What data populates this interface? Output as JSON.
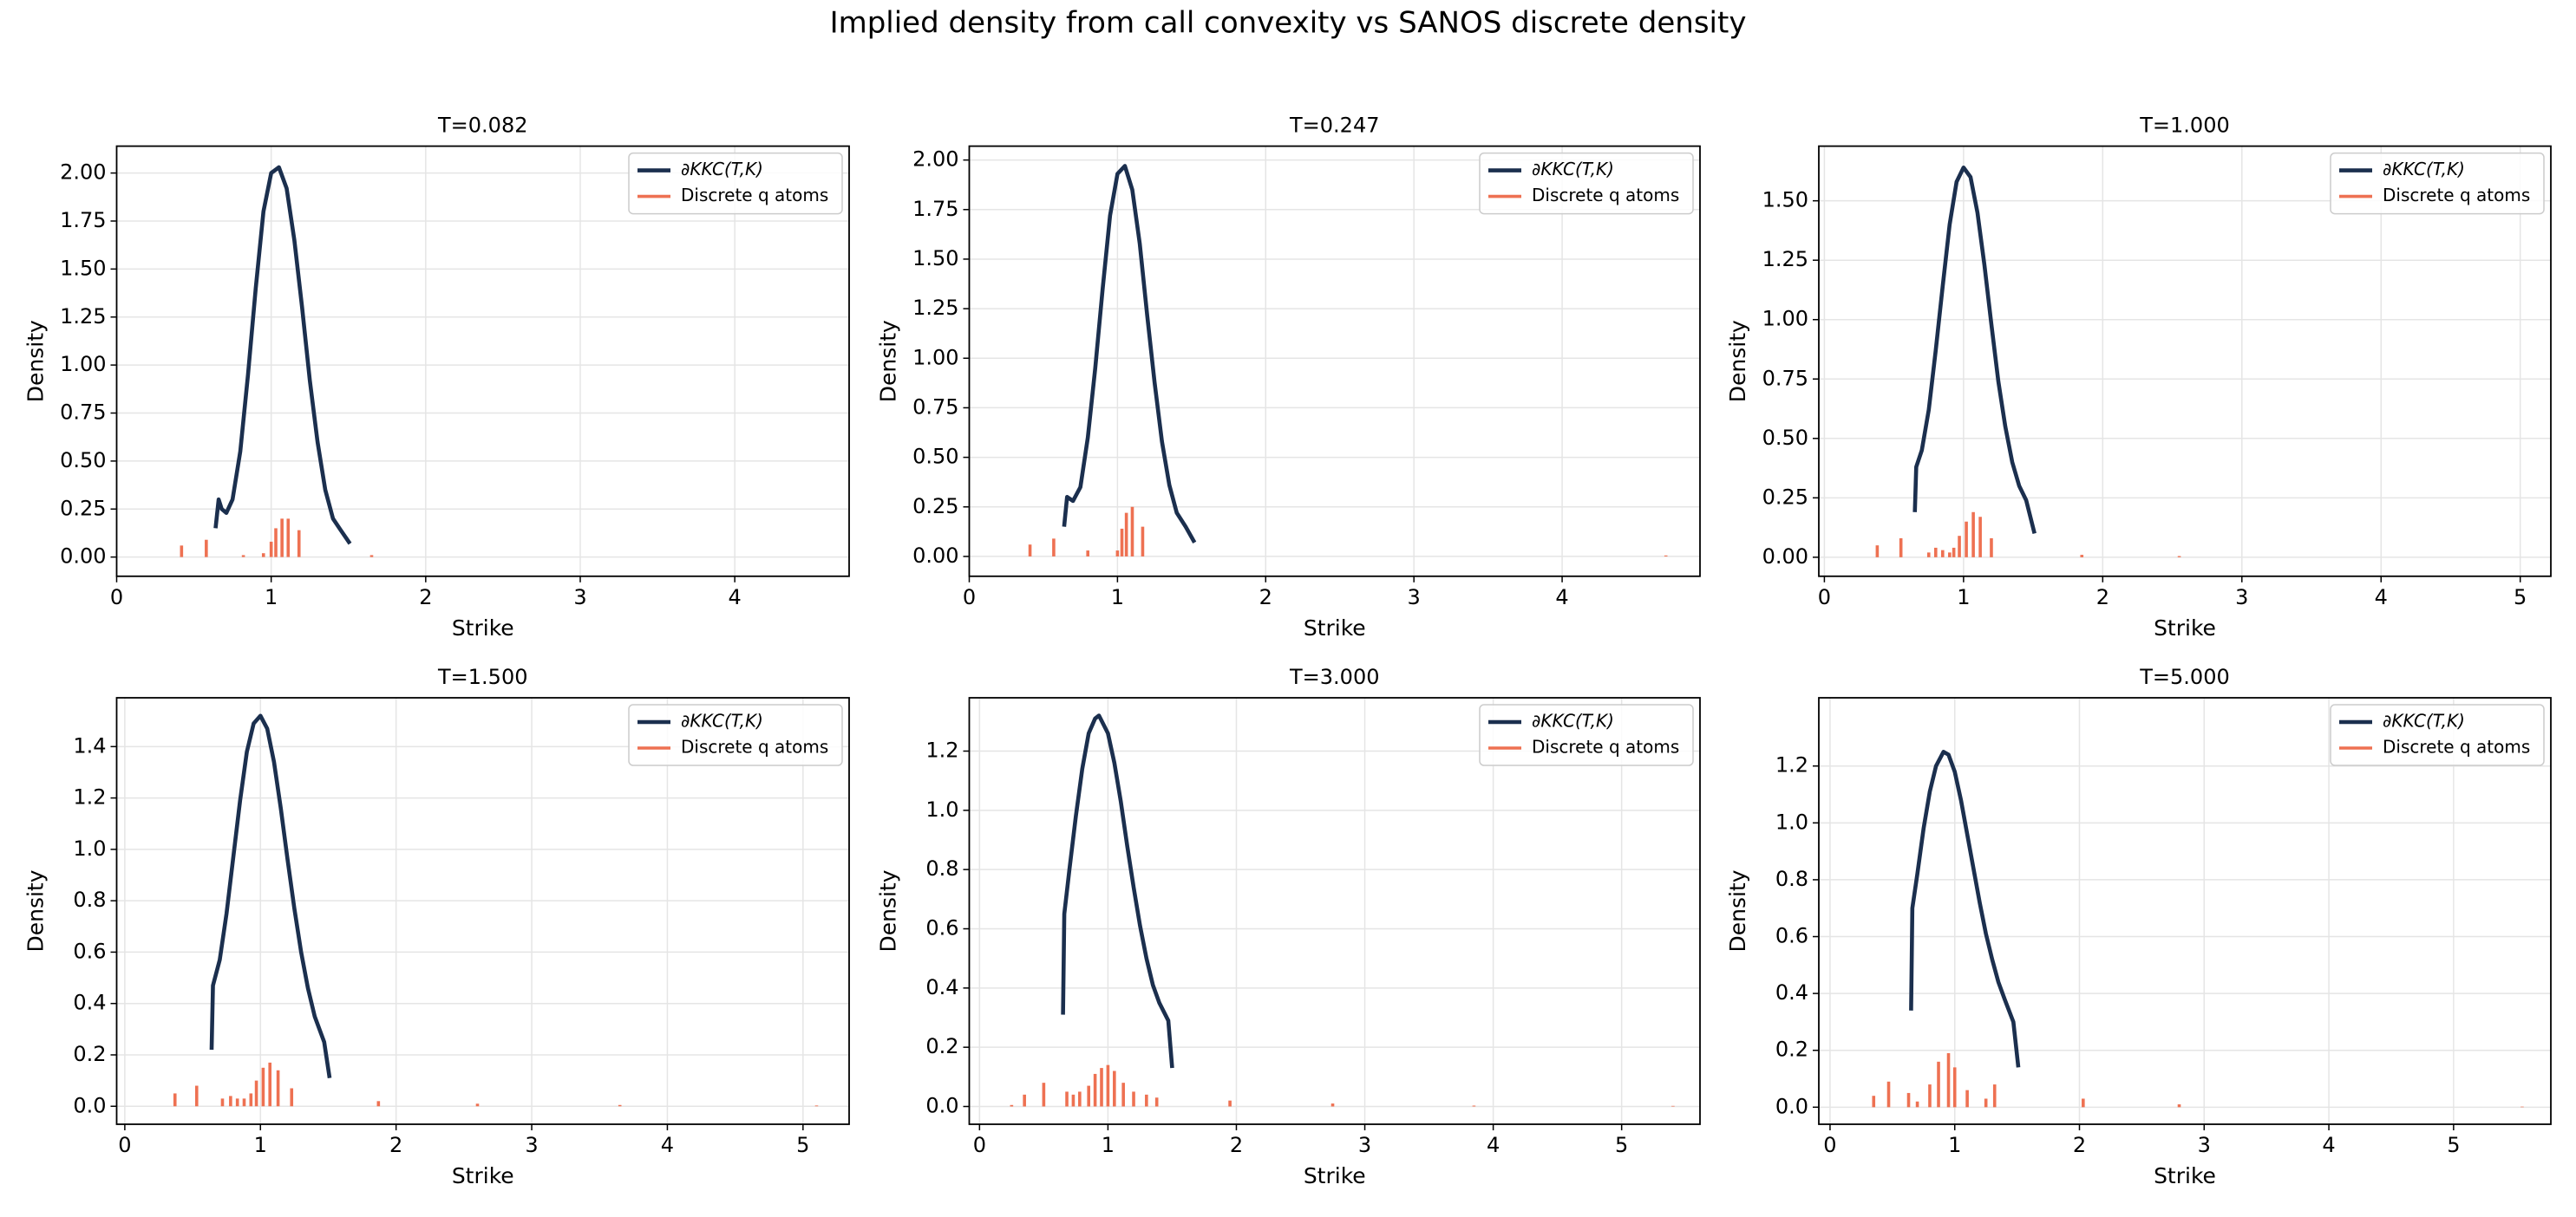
{
  "suptitle": "Implied density from call convexity vs SANOS discrete density",
  "chart_data": [
    {
      "type": "line",
      "title": "T=0.082",
      "xlabel": "Strike",
      "ylabel": "Density",
      "xlim": [
        0,
        4.74
      ],
      "ylim": [
        -0.1,
        2.14
      ],
      "xticks": [
        0,
        1,
        2,
        3,
        4
      ],
      "yticks": [
        {
          "value": 0,
          "label": "0.00"
        },
        {
          "value": 0.25,
          "label": "0.25"
        },
        {
          "value": 0.5,
          "label": "0.50"
        },
        {
          "value": 0.75,
          "label": "0.75"
        },
        {
          "value": 1,
          "label": "1.00"
        },
        {
          "value": 1.25,
          "label": "1.25"
        },
        {
          "value": 1.5,
          "label": "1.50"
        },
        {
          "value": 1.75,
          "label": "1.75"
        },
        {
          "value": 2,
          "label": "2.00"
        }
      ],
      "grid": true,
      "legend": "upper right",
      "series": [
        {
          "name": "∂KKC(T,K)",
          "color": "#1b2f4e",
          "x": [
            0.64,
            0.66,
            0.68,
            0.71,
            0.75,
            0.8,
            0.85,
            0.9,
            0.95,
            1.0,
            1.05,
            1.1,
            1.15,
            1.2,
            1.25,
            1.3,
            1.35,
            1.4,
            1.45,
            1.51
          ],
          "values": [
            0.15,
            0.3,
            0.25,
            0.23,
            0.3,
            0.55,
            0.95,
            1.4,
            1.8,
            2.0,
            2.03,
            1.92,
            1.65,
            1.3,
            0.92,
            0.6,
            0.35,
            0.2,
            0.14,
            0.07
          ]
        },
        {
          "name": "Discrete q atoms",
          "color": "#ee7152",
          "type": "stem",
          "x": [
            0.42,
            0.58,
            0.82,
            0.95,
            1.0,
            1.03,
            1.07,
            1.11,
            1.18,
            1.65
          ],
          "values": [
            0.06,
            0.09,
            0.01,
            0.02,
            0.08,
            0.15,
            0.2,
            0.2,
            0.14,
            0.01
          ]
        }
      ]
    },
    {
      "type": "line",
      "title": "T=0.247",
      "xlabel": "Strike",
      "ylabel": "Density",
      "xlim": [
        0,
        4.93
      ],
      "ylim": [
        -0.1,
        2.07
      ],
      "xticks": [
        0,
        1,
        2,
        3,
        4
      ],
      "yticks": [
        {
          "value": 0,
          "label": "0.00"
        },
        {
          "value": 0.25,
          "label": "0.25"
        },
        {
          "value": 0.5,
          "label": "0.50"
        },
        {
          "value": 0.75,
          "label": "0.75"
        },
        {
          "value": 1,
          "label": "1.00"
        },
        {
          "value": 1.25,
          "label": "1.25"
        },
        {
          "value": 1.5,
          "label": "1.50"
        },
        {
          "value": 1.75,
          "label": "1.75"
        },
        {
          "value": 2,
          "label": "2.00"
        }
      ],
      "grid": true,
      "legend": "upper right",
      "series": [
        {
          "name": "∂KKC(T,K)",
          "color": "#1b2f4e",
          "x": [
            0.64,
            0.66,
            0.7,
            0.75,
            0.8,
            0.85,
            0.9,
            0.95,
            1.0,
            1.05,
            1.1,
            1.15,
            1.2,
            1.25,
            1.3,
            1.35,
            1.4,
            1.46,
            1.52
          ],
          "values": [
            0.15,
            0.3,
            0.28,
            0.35,
            0.6,
            0.95,
            1.35,
            1.72,
            1.93,
            1.97,
            1.85,
            1.58,
            1.22,
            0.88,
            0.58,
            0.36,
            0.22,
            0.15,
            0.07
          ]
        },
        {
          "name": "Discrete q atoms",
          "color": "#ee7152",
          "type": "stem",
          "x": [
            0.41,
            0.57,
            0.8,
            1.0,
            1.03,
            1.06,
            1.1,
            1.17,
            4.7
          ],
          "values": [
            0.06,
            0.09,
            0.03,
            0.03,
            0.14,
            0.22,
            0.25,
            0.15,
            0.005
          ]
        }
      ]
    },
    {
      "type": "line",
      "title": "T=1.000",
      "xlabel": "Strike",
      "ylabel": "Density",
      "xlim": [
        -0.04,
        5.22
      ],
      "ylim": [
        -0.08,
        1.73
      ],
      "xticks": [
        0,
        1,
        2,
        3,
        4,
        5
      ],
      "yticks": [
        {
          "value": 0,
          "label": "0.00"
        },
        {
          "value": 0.25,
          "label": "0.25"
        },
        {
          "value": 0.5,
          "label": "0.50"
        },
        {
          "value": 0.75,
          "label": "0.75"
        },
        {
          "value": 1,
          "label": "1.00"
        },
        {
          "value": 1.25,
          "label": "1.25"
        },
        {
          "value": 1.5,
          "label": "1.50"
        }
      ],
      "grid": true,
      "legend": "upper right",
      "series": [
        {
          "name": "∂KKC(T,K)",
          "color": "#1b2f4e",
          "x": [
            0.65,
            0.66,
            0.7,
            0.75,
            0.8,
            0.85,
            0.9,
            0.95,
            1.0,
            1.05,
            1.1,
            1.15,
            1.2,
            1.25,
            1.3,
            1.35,
            1.4,
            1.45,
            1.51
          ],
          "values": [
            0.19,
            0.38,
            0.45,
            0.62,
            0.87,
            1.14,
            1.4,
            1.58,
            1.64,
            1.6,
            1.45,
            1.23,
            0.98,
            0.74,
            0.55,
            0.4,
            0.3,
            0.24,
            0.1
          ]
        },
        {
          "name": "Discrete q atoms",
          "color": "#ee7152",
          "type": "stem",
          "x": [
            0.38,
            0.55,
            0.75,
            0.8,
            0.85,
            0.9,
            0.93,
            0.97,
            1.02,
            1.07,
            1.12,
            1.2,
            1.85,
            2.55
          ],
          "values": [
            0.05,
            0.08,
            0.02,
            0.04,
            0.03,
            0.02,
            0.04,
            0.09,
            0.15,
            0.19,
            0.17,
            0.08,
            0.01,
            0.005
          ]
        }
      ]
    },
    {
      "type": "line",
      "title": "T=1.500",
      "xlabel": "Strike",
      "ylabel": "Density",
      "xlim": [
        -0.06,
        5.34
      ],
      "ylim": [
        -0.07,
        1.59
      ],
      "xticks": [
        0,
        1,
        2,
        3,
        4,
        5
      ],
      "yticks": [
        {
          "value": 0,
          "label": "0.0"
        },
        0.2,
        0.4,
        0.6,
        0.8,
        {
          "value": 1,
          "label": "1.0"
        },
        1.2,
        1.4
      ],
      "grid": true,
      "legend": "upper right",
      "series": [
        {
          "name": "∂KKC(T,K)",
          "color": "#1b2f4e",
          "x": [
            0.64,
            0.65,
            0.7,
            0.75,
            0.8,
            0.85,
            0.9,
            0.95,
            1.0,
            1.05,
            1.1,
            1.15,
            1.2,
            1.25,
            1.3,
            1.35,
            1.4,
            1.47,
            1.51
          ],
          "values": [
            0.22,
            0.47,
            0.57,
            0.75,
            0.97,
            1.19,
            1.38,
            1.49,
            1.52,
            1.47,
            1.34,
            1.16,
            0.96,
            0.77,
            0.6,
            0.46,
            0.35,
            0.25,
            0.11
          ]
        },
        {
          "name": "Discrete q atoms",
          "color": "#ee7152",
          "type": "stem",
          "x": [
            0.37,
            0.53,
            0.72,
            0.78,
            0.83,
            0.88,
            0.93,
            0.97,
            1.02,
            1.07,
            1.13,
            1.23,
            1.87,
            2.6,
            3.65,
            5.1
          ],
          "values": [
            0.05,
            0.08,
            0.03,
            0.04,
            0.03,
            0.03,
            0.05,
            0.1,
            0.15,
            0.17,
            0.14,
            0.07,
            0.02,
            0.01,
            0.005,
            0.003
          ]
        }
      ]
    },
    {
      "type": "line",
      "title": "T=3.000",
      "xlabel": "Strike",
      "ylabel": "Density",
      "xlim": [
        -0.08,
        5.61
      ],
      "ylim": [
        -0.06,
        1.38
      ],
      "xticks": [
        0,
        1,
        2,
        3,
        4,
        5
      ],
      "yticks": [
        {
          "value": 0,
          "label": "0.0"
        },
        0.2,
        0.4,
        0.6,
        0.8,
        {
          "value": 1,
          "label": "1.0"
        },
        1.2
      ],
      "grid": true,
      "legend": "upper right",
      "series": [
        {
          "name": "∂KKC(T,K)",
          "color": "#1b2f4e",
          "x": [
            0.65,
            0.66,
            0.7,
            0.75,
            0.8,
            0.85,
            0.9,
            0.93,
            1.0,
            1.05,
            1.1,
            1.15,
            1.2,
            1.25,
            1.3,
            1.35,
            1.4,
            1.47,
            1.5
          ],
          "values": [
            0.31,
            0.65,
            0.8,
            0.98,
            1.14,
            1.26,
            1.31,
            1.32,
            1.26,
            1.16,
            1.03,
            0.88,
            0.74,
            0.61,
            0.5,
            0.41,
            0.35,
            0.29,
            0.13
          ]
        },
        {
          "name": "Discrete q atoms",
          "color": "#ee7152",
          "type": "stem",
          "x": [
            0.25,
            0.35,
            0.5,
            0.68,
            0.73,
            0.78,
            0.85,
            0.9,
            0.95,
            1.0,
            1.05,
            1.12,
            1.2,
            1.3,
            1.38,
            1.95,
            2.75,
            3.85,
            5.4
          ],
          "values": [
            0.005,
            0.04,
            0.08,
            0.05,
            0.04,
            0.05,
            0.07,
            0.11,
            0.13,
            0.14,
            0.12,
            0.08,
            0.05,
            0.04,
            0.03,
            0.02,
            0.01,
            0.003,
            0.002
          ]
        }
      ]
    },
    {
      "type": "line",
      "title": "T=5.000",
      "xlabel": "Strike",
      "ylabel": "Density",
      "xlim": [
        -0.09,
        5.78
      ],
      "ylim": [
        -0.06,
        1.44
      ],
      "xticks": [
        0,
        1,
        2,
        3,
        4,
        5
      ],
      "yticks": [
        {
          "value": 0,
          "label": "0.0"
        },
        0.2,
        0.4,
        0.6,
        0.8,
        {
          "value": 1,
          "label": "1.0"
        },
        1.2
      ],
      "grid": true,
      "legend": "upper right",
      "series": [
        {
          "name": "∂KKC(T,K)",
          "color": "#1b2f4e",
          "x": [
            0.65,
            0.66,
            0.7,
            0.75,
            0.8,
            0.85,
            0.91,
            0.95,
            1.0,
            1.05,
            1.1,
            1.15,
            1.2,
            1.25,
            1.3,
            1.35,
            1.4,
            1.47,
            1.51
          ],
          "values": [
            0.34,
            0.7,
            0.82,
            0.98,
            1.11,
            1.2,
            1.25,
            1.24,
            1.18,
            1.08,
            0.96,
            0.84,
            0.72,
            0.61,
            0.52,
            0.44,
            0.38,
            0.3,
            0.14
          ]
        },
        {
          "name": "Discrete q atoms",
          "color": "#ee7152",
          "type": "stem",
          "x": [
            0.35,
            0.47,
            0.63,
            0.7,
            0.8,
            0.87,
            0.95,
            1.0,
            1.1,
            1.25,
            1.32,
            2.03,
            2.8,
            5.55
          ],
          "values": [
            0.04,
            0.09,
            0.05,
            0.02,
            0.08,
            0.16,
            0.19,
            0.14,
            0.06,
            0.03,
            0.08,
            0.03,
            0.01,
            0.002
          ]
        }
      ]
    }
  ]
}
